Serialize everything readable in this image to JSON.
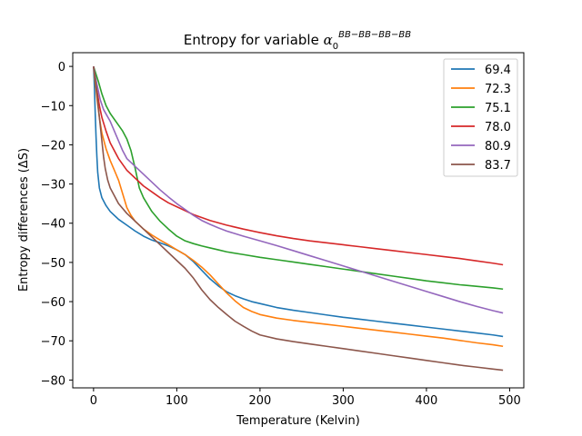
{
  "chart_data": {
    "type": "line",
    "title": "Entropy for variable ",
    "title_symbol": "α",
    "title_subscript": "0",
    "title_superscript": "BB−BB−BB−BB",
    "xlabel": "Temperature (Kelvin)",
    "ylabel": "Entropy differences (ΔS)",
    "xlim": [
      -25,
      517
    ],
    "ylim": [
      -82,
      3.5
    ],
    "xticks": [
      0,
      100,
      200,
      300,
      400,
      500
    ],
    "yticks": [
      0,
      -10,
      -20,
      -30,
      -40,
      -50,
      -60,
      -70,
      -80
    ],
    "grid": false,
    "legend_position": "top-right",
    "series": [
      {
        "name": "69.4",
        "color": "#1f77b4",
        "points": [
          [
            0,
            0
          ],
          [
            1,
            -5
          ],
          [
            2,
            -12
          ],
          [
            3,
            -18
          ],
          [
            4,
            -23
          ],
          [
            5,
            -27
          ],
          [
            7,
            -31
          ],
          [
            10,
            -33.5
          ],
          [
            15,
            -35.5
          ],
          [
            20,
            -37
          ],
          [
            30,
            -39
          ],
          [
            40,
            -40.5
          ],
          [
            50,
            -42
          ],
          [
            60,
            -43.3
          ],
          [
            70,
            -44.3
          ],
          [
            80,
            -45
          ],
          [
            90,
            -45.8
          ],
          [
            100,
            -46.8
          ],
          [
            110,
            -48
          ],
          [
            120,
            -49.8
          ],
          [
            130,
            -52
          ],
          [
            140,
            -54.2
          ],
          [
            150,
            -56
          ],
          [
            160,
            -57.5
          ],
          [
            170,
            -58.5
          ],
          [
            180,
            -59.3
          ],
          [
            190,
            -60
          ],
          [
            200,
            -60.5
          ],
          [
            220,
            -61.5
          ],
          [
            240,
            -62.2
          ],
          [
            260,
            -62.8
          ],
          [
            280,
            -63.4
          ],
          [
            300,
            -64
          ],
          [
            320,
            -64.5
          ],
          [
            340,
            -65
          ],
          [
            360,
            -65.5
          ],
          [
            380,
            -66
          ],
          [
            400,
            -66.5
          ],
          [
            420,
            -67
          ],
          [
            440,
            -67.5
          ],
          [
            460,
            -68
          ],
          [
            480,
            -68.5
          ],
          [
            492,
            -68.9
          ]
        ]
      },
      {
        "name": "72.3",
        "color": "#ff7f0e",
        "points": [
          [
            0,
            0
          ],
          [
            2,
            -4
          ],
          [
            4,
            -8
          ],
          [
            7,
            -13
          ],
          [
            10,
            -17
          ],
          [
            15,
            -21
          ],
          [
            20,
            -24
          ],
          [
            25,
            -26.5
          ],
          [
            30,
            -29
          ],
          [
            35,
            -32.5
          ],
          [
            40,
            -36
          ],
          [
            45,
            -38
          ],
          [
            50,
            -39.5
          ],
          [
            60,
            -41.5
          ],
          [
            70,
            -43
          ],
          [
            80,
            -44.3
          ],
          [
            90,
            -45.5
          ],
          [
            100,
            -46.8
          ],
          [
            110,
            -48
          ],
          [
            120,
            -49.5
          ],
          [
            130,
            -51.2
          ],
          [
            140,
            -53.2
          ],
          [
            150,
            -55.5
          ],
          [
            160,
            -57.8
          ],
          [
            170,
            -59.8
          ],
          [
            180,
            -61.5
          ],
          [
            190,
            -62.5
          ],
          [
            200,
            -63.3
          ],
          [
            220,
            -64.2
          ],
          [
            240,
            -64.8
          ],
          [
            260,
            -65.3
          ],
          [
            280,
            -65.8
          ],
          [
            300,
            -66.3
          ],
          [
            320,
            -66.8
          ],
          [
            340,
            -67.3
          ],
          [
            360,
            -67.8
          ],
          [
            380,
            -68.3
          ],
          [
            400,
            -68.8
          ],
          [
            420,
            -69.3
          ],
          [
            440,
            -69.9
          ],
          [
            460,
            -70.5
          ],
          [
            480,
            -71
          ],
          [
            492,
            -71.4
          ]
        ]
      },
      {
        "name": "75.1",
        "color": "#2ca02c",
        "points": [
          [
            0,
            0
          ],
          [
            3,
            -2
          ],
          [
            6,
            -4
          ],
          [
            10,
            -7
          ],
          [
            15,
            -10
          ],
          [
            20,
            -12
          ],
          [
            25,
            -13.5
          ],
          [
            30,
            -15
          ],
          [
            35,
            -16.5
          ],
          [
            40,
            -18.5
          ],
          [
            45,
            -21.5
          ],
          [
            50,
            -26
          ],
          [
            55,
            -31
          ],
          [
            60,
            -33.5
          ],
          [
            70,
            -37
          ],
          [
            80,
            -39.5
          ],
          [
            90,
            -41.5
          ],
          [
            100,
            -43.3
          ],
          [
            110,
            -44.5
          ],
          [
            120,
            -45.2
          ],
          [
            130,
            -45.8
          ],
          [
            140,
            -46.3
          ],
          [
            150,
            -46.8
          ],
          [
            160,
            -47.3
          ],
          [
            180,
            -48
          ],
          [
            200,
            -48.7
          ],
          [
            220,
            -49.3
          ],
          [
            240,
            -49.9
          ],
          [
            260,
            -50.5
          ],
          [
            280,
            -51.1
          ],
          [
            300,
            -51.7
          ],
          [
            320,
            -52.3
          ],
          [
            340,
            -52.9
          ],
          [
            360,
            -53.5
          ],
          [
            380,
            -54.1
          ],
          [
            400,
            -54.7
          ],
          [
            420,
            -55.2
          ],
          [
            440,
            -55.7
          ],
          [
            460,
            -56.1
          ],
          [
            480,
            -56.5
          ],
          [
            492,
            -56.8
          ]
        ]
      },
      {
        "name": "78.0",
        "color": "#d62728",
        "points": [
          [
            0,
            0
          ],
          [
            2,
            -3
          ],
          [
            4,
            -6
          ],
          [
            7,
            -10
          ],
          [
            10,
            -13
          ],
          [
            15,
            -16.5
          ],
          [
            20,
            -19.5
          ],
          [
            30,
            -23.5
          ],
          [
            40,
            -26.5
          ],
          [
            50,
            -28.5
          ],
          [
            60,
            -30.5
          ],
          [
            70,
            -32
          ],
          [
            80,
            -33.5
          ],
          [
            90,
            -34.8
          ],
          [
            100,
            -35.8
          ],
          [
            110,
            -36.8
          ],
          [
            120,
            -37.8
          ],
          [
            140,
            -39.3
          ],
          [
            160,
            -40.5
          ],
          [
            180,
            -41.5
          ],
          [
            200,
            -42.4
          ],
          [
            220,
            -43.2
          ],
          [
            240,
            -43.9
          ],
          [
            260,
            -44.5
          ],
          [
            280,
            -45
          ],
          [
            300,
            -45.5
          ],
          [
            320,
            -46
          ],
          [
            340,
            -46.5
          ],
          [
            360,
            -47
          ],
          [
            380,
            -47.5
          ],
          [
            400,
            -48
          ],
          [
            420,
            -48.5
          ],
          [
            440,
            -49
          ],
          [
            460,
            -49.6
          ],
          [
            480,
            -50.2
          ],
          [
            492,
            -50.6
          ]
        ]
      },
      {
        "name": "80.9",
        "color": "#9467bd",
        "points": [
          [
            0,
            0
          ],
          [
            2,
            -2.5
          ],
          [
            5,
            -5.5
          ],
          [
            8,
            -8.5
          ],
          [
            12,
            -11
          ],
          [
            16,
            -12.5
          ],
          [
            20,
            -14
          ],
          [
            25,
            -16.5
          ],
          [
            30,
            -19
          ],
          [
            35,
            -21.5
          ],
          [
            40,
            -23.5
          ],
          [
            50,
            -25.5
          ],
          [
            60,
            -27.5
          ],
          [
            70,
            -29.5
          ],
          [
            80,
            -31.5
          ],
          [
            90,
            -33.3
          ],
          [
            100,
            -35
          ],
          [
            110,
            -36.5
          ],
          [
            120,
            -38
          ],
          [
            130,
            -39.3
          ],
          [
            140,
            -40.3
          ],
          [
            150,
            -41.2
          ],
          [
            160,
            -42
          ],
          [
            180,
            -43.3
          ],
          [
            200,
            -44.5
          ],
          [
            220,
            -45.7
          ],
          [
            240,
            -47
          ],
          [
            260,
            -48.3
          ],
          [
            280,
            -49.6
          ],
          [
            300,
            -50.9
          ],
          [
            320,
            -52.2
          ],
          [
            340,
            -53.5
          ],
          [
            360,
            -54.8
          ],
          [
            380,
            -56.1
          ],
          [
            400,
            -57.4
          ],
          [
            420,
            -58.7
          ],
          [
            440,
            -60
          ],
          [
            460,
            -61.2
          ],
          [
            480,
            -62.3
          ],
          [
            492,
            -62.9
          ]
        ]
      },
      {
        "name": "83.7",
        "color": "#8c564b",
        "points": [
          [
            0,
            0
          ],
          [
            2,
            -3
          ],
          [
            4,
            -7
          ],
          [
            6,
            -11
          ],
          [
            8,
            -15
          ],
          [
            10,
            -19
          ],
          [
            12,
            -23
          ],
          [
            14,
            -26
          ],
          [
            17,
            -29
          ],
          [
            20,
            -31
          ],
          [
            25,
            -33
          ],
          [
            30,
            -35
          ],
          [
            40,
            -37.5
          ],
          [
            50,
            -39.5
          ],
          [
            60,
            -41.5
          ],
          [
            70,
            -43.5
          ],
          [
            80,
            -45.5
          ],
          [
            90,
            -47.5
          ],
          [
            100,
            -49.5
          ],
          [
            110,
            -51.5
          ],
          [
            120,
            -54
          ],
          [
            130,
            -57
          ],
          [
            140,
            -59.5
          ],
          [
            150,
            -61.5
          ],
          [
            160,
            -63.3
          ],
          [
            170,
            -65
          ],
          [
            180,
            -66.3
          ],
          [
            190,
            -67.5
          ],
          [
            200,
            -68.5
          ],
          [
            220,
            -69.5
          ],
          [
            240,
            -70.2
          ],
          [
            260,
            -70.8
          ],
          [
            280,
            -71.4
          ],
          [
            300,
            -72
          ],
          [
            320,
            -72.6
          ],
          [
            340,
            -73.2
          ],
          [
            360,
            -73.8
          ],
          [
            380,
            -74.4
          ],
          [
            400,
            -75
          ],
          [
            420,
            -75.6
          ],
          [
            440,
            -76.2
          ],
          [
            460,
            -76.7
          ],
          [
            480,
            -77.2
          ],
          [
            492,
            -77.5
          ]
        ]
      }
    ]
  }
}
